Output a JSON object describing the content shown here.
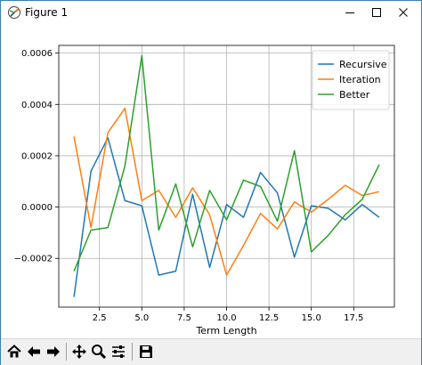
{
  "window": {
    "title": "Figure 1",
    "icons": {
      "app": "matplotlib-icon",
      "minimize": "minimize-icon",
      "maximize": "maximize-icon",
      "close": "close-icon"
    }
  },
  "toolbar": {
    "buttons": [
      {
        "name": "home-button",
        "icon": "home-icon"
      },
      {
        "name": "back-button",
        "icon": "arrow-left-icon"
      },
      {
        "name": "forward-button",
        "icon": "arrow-right-icon"
      },
      {
        "name": "pan-button",
        "icon": "move-icon"
      },
      {
        "name": "zoom-button",
        "icon": "magnifier-icon"
      },
      {
        "name": "configure-subplots-button",
        "icon": "sliders-icon"
      },
      {
        "name": "save-button",
        "icon": "floppy-disk-icon"
      }
    ]
  },
  "chart_data": {
    "type": "line",
    "title": "",
    "xlabel": "Term Length",
    "ylabel": "",
    "xlim": [
      0.1,
      19.9
    ],
    "ylim": [
      -0.00039,
      0.00063
    ],
    "xticks": [
      2.5,
      5.0,
      7.5,
      10.0,
      12.5,
      15.0,
      17.5
    ],
    "xtick_labels": [
      "2.5",
      "5.0",
      "7.5",
      "10.0",
      "12.5",
      "15.0",
      "17.5"
    ],
    "yticks": [
      -0.0002,
      0.0,
      0.0002,
      0.0004,
      0.0006
    ],
    "ytick_labels": [
      "−0.0002",
      "0.0000",
      "0.0002",
      "0.0004",
      "0.0006"
    ],
    "grid": true,
    "legend_position": "top-right",
    "x": [
      1,
      2,
      3,
      4,
      5,
      6,
      7,
      8,
      9,
      10,
      11,
      12,
      13,
      14,
      15,
      16,
      17,
      18,
      19
    ],
    "series": [
      {
        "name": "Recursive",
        "color": "#1f77b4",
        "values": [
          -0.00035,
          0.00014,
          0.00027,
          2.5e-05,
          5e-06,
          -0.000265,
          -0.00025,
          5e-05,
          -0.000235,
          1e-05,
          -4e-05,
          0.000135,
          5.5e-05,
          -0.000195,
          5e-06,
          -5e-06,
          -5e-05,
          1e-05,
          -4e-05
        ]
      },
      {
        "name": "Iteration",
        "color": "#ff7f0e",
        "values": [
          0.000275,
          -8e-05,
          0.00029,
          0.000385,
          2.5e-05,
          6.5e-05,
          -4e-05,
          7.5e-05,
          -3e-05,
          -0.000265,
          -0.00015,
          -2.5e-05,
          -8.5e-05,
          2e-05,
          -2e-05,
          3e-05,
          8.5e-05,
          4.5e-05,
          6e-05
        ]
      },
      {
        "name": "Better",
        "color": "#2ca02c",
        "values": [
          -0.00025,
          -9e-05,
          -8e-05,
          0.00016,
          0.00059,
          -9e-05,
          9e-05,
          -0.000155,
          6.5e-05,
          -5e-05,
          0.000105,
          8e-05,
          -5.5e-05,
          0.00022,
          -0.000175,
          -0.00011,
          -3e-05,
          3e-05,
          0.000165
        ]
      }
    ]
  }
}
